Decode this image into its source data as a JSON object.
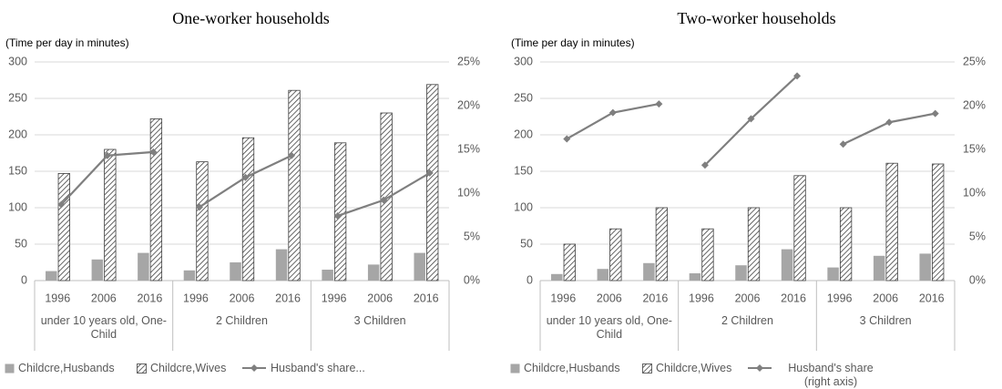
{
  "chart_data": [
    {
      "type": "bar-line",
      "title": "One-worker households",
      "y_label": "(Time per day in minutes)",
      "groups": [
        "under 10 years old, One-Child",
        "2 Children",
        "3 Children"
      ],
      "categories": [
        "1996",
        "2006",
        "2016",
        "1996",
        "2006",
        "2016",
        "1996",
        "2006",
        "2016"
      ],
      "ylim": [
        0,
        300
      ],
      "yticks": [
        0,
        50,
        100,
        150,
        200,
        250,
        300
      ],
      "y2lim": [
        0,
        25
      ],
      "y2ticks": [
        {
          "value": 0,
          "label": "0%"
        },
        {
          "value": 5,
          "label": "5%"
        },
        {
          "value": 10,
          "label": "10%"
        },
        {
          "value": 15,
          "label": "15%"
        },
        {
          "value": 20,
          "label": "20%"
        },
        {
          "value": 25,
          "label": "25%"
        }
      ],
      "grid": true,
      "series": [
        {
          "name": "Childcre,Husbands",
          "kind": "bar",
          "color": "#a6a6a6",
          "values": [
            13,
            29,
            38,
            14,
            25,
            43,
            15,
            22,
            38
          ]
        },
        {
          "name": "Childcre,Wives",
          "kind": "bar",
          "color": "#404040",
          "pattern": "hatch",
          "values": [
            147,
            180,
            222,
            163,
            196,
            261,
            189,
            230,
            269
          ]
        },
        {
          "name": "Husband's share...",
          "kind": "line",
          "axis": "y2",
          "color": "#7f7f7f",
          "values": [
            8.7,
            14.3,
            14.7,
            8.4,
            11.8,
            14.3,
            7.4,
            9.2,
            12.3
          ]
        }
      ]
    },
    {
      "type": "bar-line",
      "title": "Two-worker households",
      "y_label": "(Time per day in minutes)",
      "groups": [
        "under 10 years old, One-Child",
        "2 Children",
        "3 Children"
      ],
      "categories": [
        "1996",
        "2006",
        "2016",
        "1996",
        "2006",
        "2016",
        "1996",
        "2006",
        "2016"
      ],
      "ylim": [
        0,
        300
      ],
      "yticks": [
        0,
        50,
        100,
        150,
        200,
        250,
        300
      ],
      "y2lim": [
        0,
        25
      ],
      "y2ticks": [
        {
          "value": 0,
          "label": "0%"
        },
        {
          "value": 5,
          "label": "5%"
        },
        {
          "value": 10,
          "label": "10%"
        },
        {
          "value": 15,
          "label": "15%"
        },
        {
          "value": 20,
          "label": "20%"
        },
        {
          "value": 25,
          "label": "25%"
        }
      ],
      "grid": true,
      "series": [
        {
          "name": "Childcre,Husbands",
          "kind": "bar",
          "color": "#a6a6a6",
          "values": [
            9,
            16,
            24,
            10,
            21,
            43,
            18,
            34,
            37
          ]
        },
        {
          "name": "Childcre,Wives",
          "kind": "bar",
          "color": "#404040",
          "pattern": "hatch",
          "values": [
            50,
            71,
            100,
            71,
            100,
            144,
            100,
            161,
            160
          ]
        },
        {
          "name": "Husband's share (right axis)",
          "kind": "line",
          "axis": "y2",
          "color": "#7f7f7f",
          "values": [
            16.2,
            19.2,
            20.2,
            13.2,
            18.5,
            23.4,
            15.6,
            18.1,
            19.1
          ]
        }
      ]
    }
  ]
}
